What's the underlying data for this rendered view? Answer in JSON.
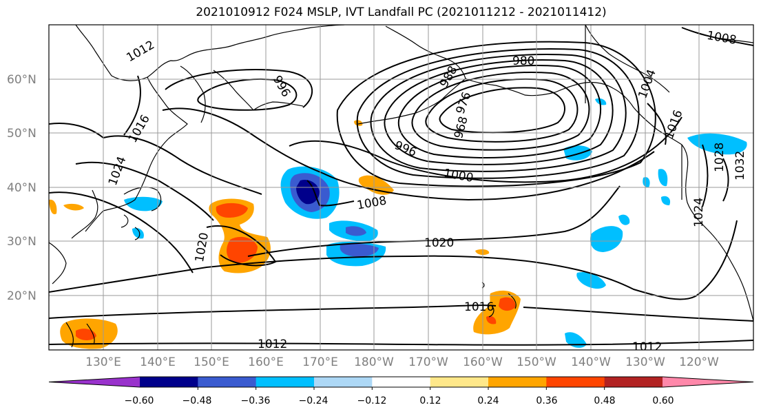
{
  "title": "2021010912 F024 MSLP, IVT Landfall PC (2021011212 - 2021011412)",
  "map": {
    "lat_labels": [
      "60°N",
      "50°N",
      "40°N",
      "30°N",
      "20°N"
    ],
    "lon_labels": [
      "130°E",
      "140°E",
      "150°E",
      "160°E",
      "170°E",
      "180°W",
      "170°W",
      "160°W",
      "150°W",
      "140°W",
      "130°W",
      "120°W"
    ],
    "contour_labels": [
      "988",
      "980",
      "976",
      "968",
      "996",
      "1000",
      "1004",
      "1008",
      "1016",
      "1020",
      "1020",
      "1024",
      "1024",
      "1016",
      "1012",
      "1012",
      "1016",
      "1028",
      "1032",
      "1008",
      "1012",
      "996"
    ],
    "colors": {
      "land_coast": "#000000",
      "grid": "#9a9a9a"
    }
  },
  "colorbar": {
    "tick_labels": [
      "−0.60",
      "−0.48",
      "−0.36",
      "−0.24",
      "−0.12",
      "0.12",
      "0.24",
      "0.36",
      "0.48",
      "0.60"
    ],
    "ticks": [
      -0.6,
      -0.48,
      -0.36,
      -0.24,
      -0.12,
      0.12,
      0.24,
      0.36,
      0.48,
      0.6
    ],
    "colors": [
      "#9932cc",
      "#00008b",
      "#3a5bd0",
      "#00bfff",
      "#add8f6",
      "#ffffff",
      "#ffe88a",
      "#ffa500",
      "#ff4500",
      "#b22222",
      "#ff88aa"
    ],
    "extend": "both"
  }
}
